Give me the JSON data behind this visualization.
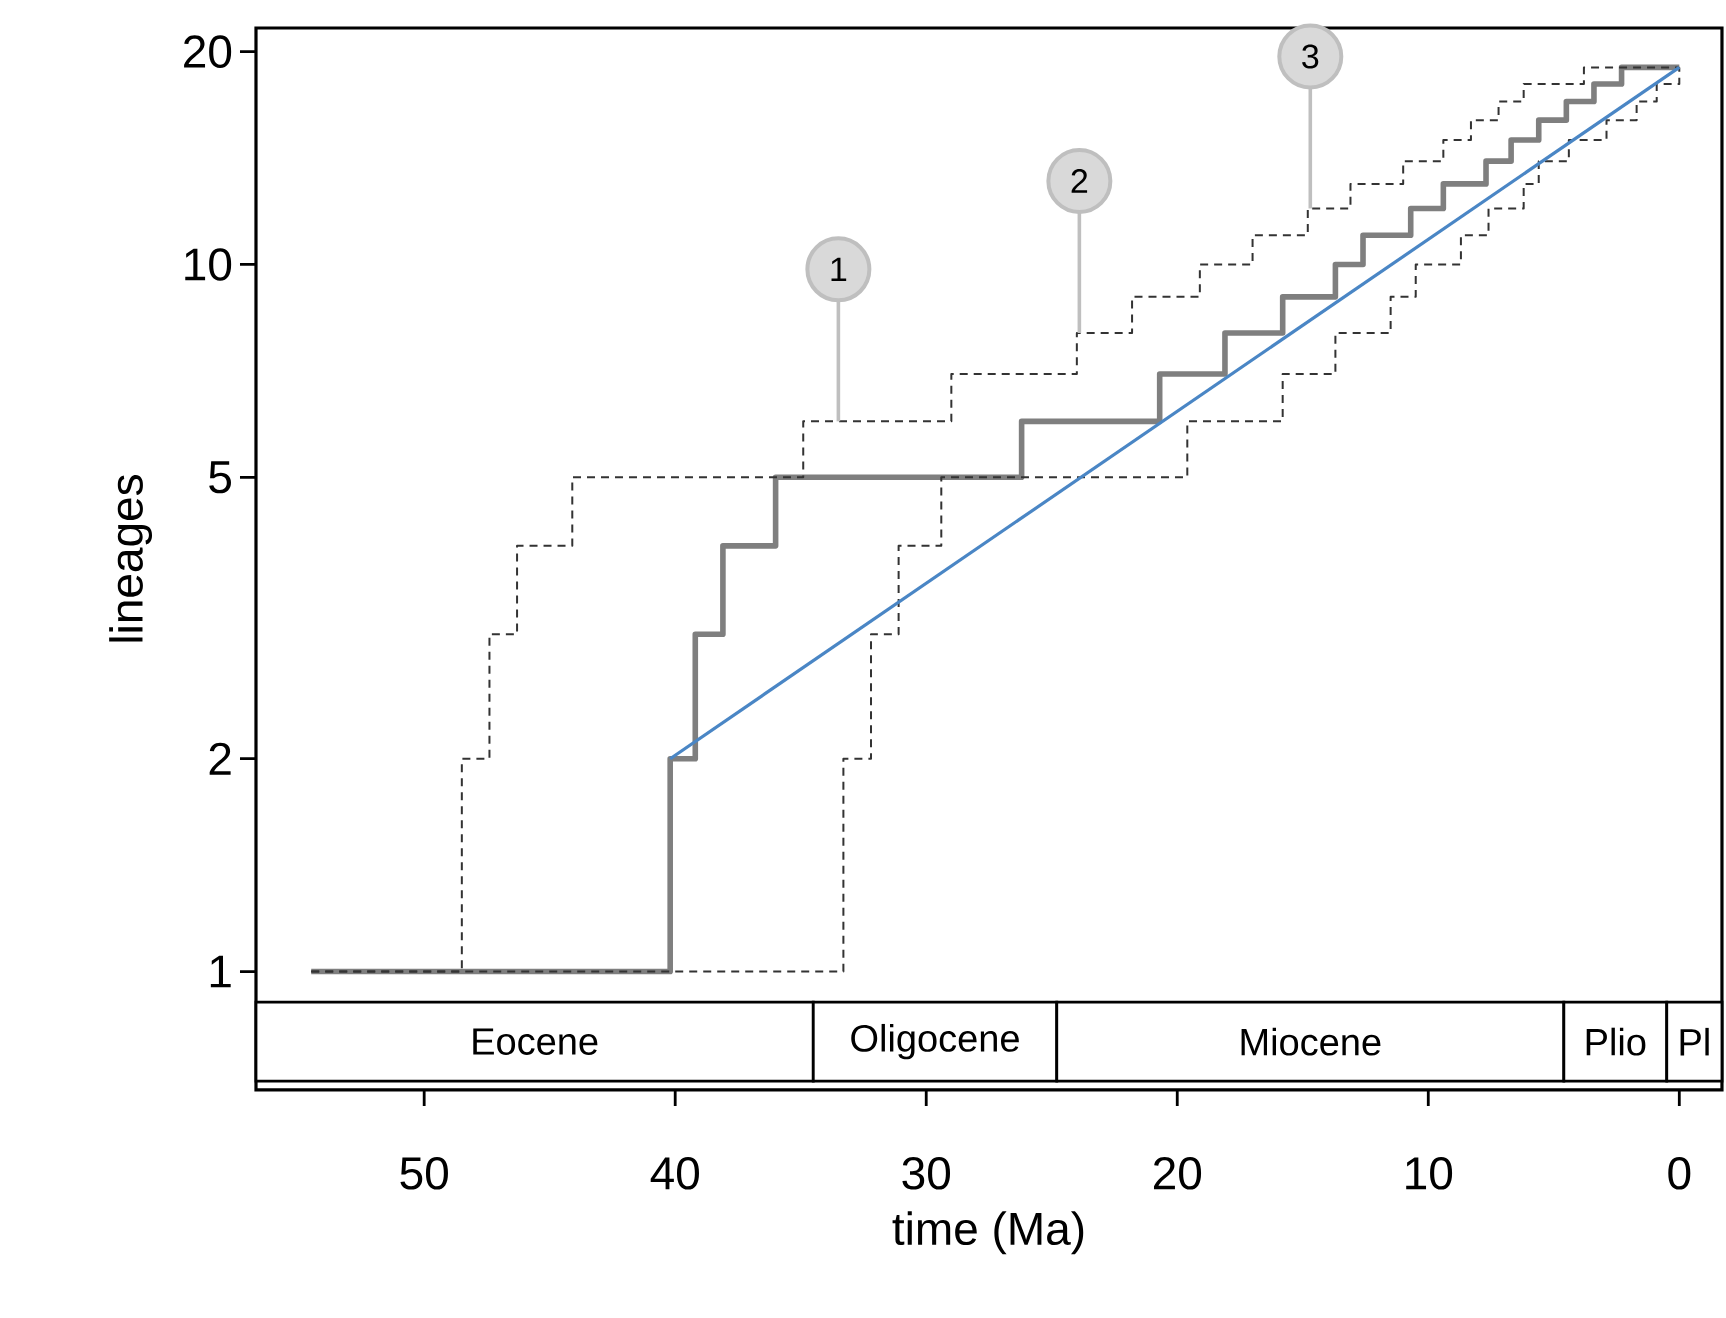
{
  "chart_data": {
    "type": "step",
    "xlabel": "time (Ma)",
    "ylabel": "lineages",
    "log": "y",
    "xlim": [
      56.7,
      -1.7
    ],
    "xticks": [
      50,
      40,
      30,
      20,
      10,
      0
    ],
    "ylim": [
      0.68,
      21.6
    ],
    "yticks": [
      1,
      2,
      5,
      10,
      20
    ],
    "series": [
      {
        "type": "step",
        "color": "#7f7f7f",
        "line_style": "solid",
        "x": [
          54.5,
          40.2,
          39.2,
          38.1,
          36.0,
          26.2,
          20.7,
          18.1,
          15.8,
          13.7,
          12.6,
          10.7,
          9.4,
          7.7,
          6.7,
          5.6,
          4.5,
          3.4,
          2.3,
          0
        ],
        "values": [
          1,
          2,
          3,
          4,
          5,
          6,
          7,
          8,
          9,
          10,
          11,
          12,
          13,
          14,
          15,
          16,
          17,
          18,
          19,
          19
        ]
      },
      {
        "type": "step",
        "color": "#333333",
        "line_style": "dashed",
        "x": [
          54.5,
          48.5,
          47.4,
          46.3,
          44.1,
          34.9,
          29.0,
          24.0,
          21.8,
          19.1,
          17.0,
          14.8,
          13.1,
          11.0,
          9.4,
          8.3,
          7.2,
          6.2,
          3.8,
          0
        ],
        "values": [
          1,
          2,
          3,
          4,
          5,
          6,
          7,
          8,
          9,
          10,
          11,
          12,
          13,
          14,
          15,
          16,
          17,
          18,
          19,
          19
        ]
      },
      {
        "type": "step",
        "color": "#333333",
        "line_style": "dashed",
        "x": [
          54.5,
          33.3,
          32.2,
          31.1,
          29.4,
          19.6,
          15.8,
          13.7,
          11.5,
          10.5,
          8.7,
          7.6,
          6.2,
          5.6,
          4.4,
          2.9,
          1.7,
          0.9,
          0
        ],
        "values": [
          1,
          2,
          3,
          4,
          5,
          6,
          7,
          8,
          9,
          10,
          11,
          12,
          13,
          14,
          15,
          16,
          17,
          18,
          19
        ]
      },
      {
        "type": "line",
        "color": "#4a86c5",
        "line_style": "solid",
        "x": [
          40.2,
          0
        ],
        "values": [
          2,
          19
        ]
      }
    ],
    "bands": [
      {
        "axis": "x",
        "from": 56.7,
        "to": 34.5,
        "label": "Eocene",
        "color": "#ffffff"
      },
      {
        "axis": "x",
        "from": 34.5,
        "to": 24.8,
        "label": "Oligocene",
        "color": "#ffffff"
      },
      {
        "axis": "x",
        "from": 24.8,
        "to": 4.6,
        "label": "Miocene",
        "color": "#ffffff"
      },
      {
        "axis": "x",
        "from": 4.6,
        "to": 0.5,
        "label": "Plio",
        "color": "#ffffff"
      },
      {
        "axis": "x",
        "from": 0.5,
        "to": -1.7,
        "label": "Pl",
        "color": "#ffffff"
      }
    ],
    "annotations": [
      {
        "text": "1",
        "x": 33.5,
        "y": 6
      },
      {
        "text": "2",
        "x": 23.9,
        "y": 8
      },
      {
        "text": "3",
        "x": 14.7,
        "y": 12
      }
    ]
  }
}
